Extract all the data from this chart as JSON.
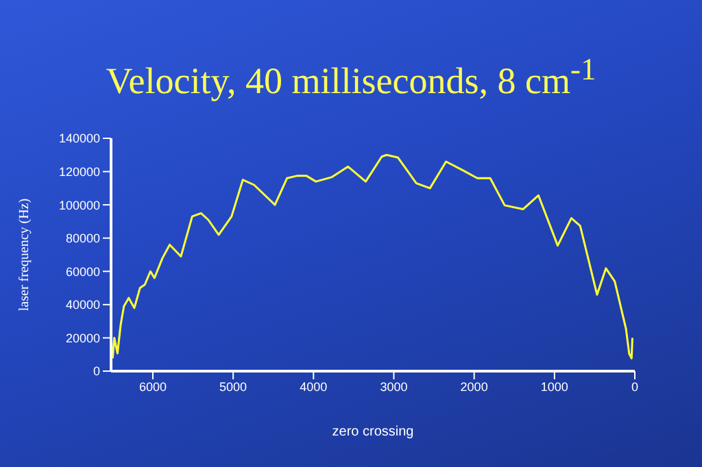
{
  "chart_data": {
    "type": "line",
    "title": "Velocity, 40 milliseconds, 8 cm$^{-1}$",
    "xlabel": "zero crossing",
    "ylabel": "laser frequency (Hz)",
    "x": [
      6500,
      6480,
      6440,
      6400,
      6360,
      6300,
      6230,
      6160,
      6100,
      6030,
      5980,
      5880,
      5790,
      5650,
      5510,
      5400,
      5310,
      5180,
      5020,
      4880,
      4740,
      4480,
      4330,
      4200,
      4090,
      3970,
      3770,
      3570,
      3350,
      3150,
      3090,
      2950,
      2720,
      2550,
      2350,
      2150,
      1960,
      1800,
      1620,
      1390,
      1200,
      960,
      790,
      680,
      470,
      360,
      250,
      110,
      70,
      40,
      30
    ],
    "series": [
      {
        "color": "#ffff33",
        "values": [
          7700,
          20000,
          10700,
          28000,
          39000,
          44000,
          38000,
          50000,
          52000,
          60000,
          56000,
          68000,
          76000,
          69000,
          93000,
          95000,
          91000,
          82000,
          93000,
          115000,
          112000,
          100000,
          116000,
          117500,
          117500,
          114000,
          116700,
          123000,
          114000,
          129000,
          130000,
          128500,
          113000,
          110000,
          126000,
          121000,
          116000,
          116000,
          99700,
          97400,
          105700,
          75500,
          92000,
          87300,
          46000,
          61800,
          54000,
          25500,
          10500,
          7700,
          20000
        ]
      }
    ],
    "xlim": [
      6520,
      0
    ],
    "xticks": [
      6000,
      5000,
      4000,
      3000,
      2000,
      1000,
      0
    ],
    "ylim": [
      0,
      140000
    ],
    "yticks": [
      0,
      20000,
      40000,
      60000,
      80000,
      100000,
      120000,
      140000
    ],
    "grid": false,
    "legend": false,
    "marker": "none",
    "line_style": "solid"
  }
}
